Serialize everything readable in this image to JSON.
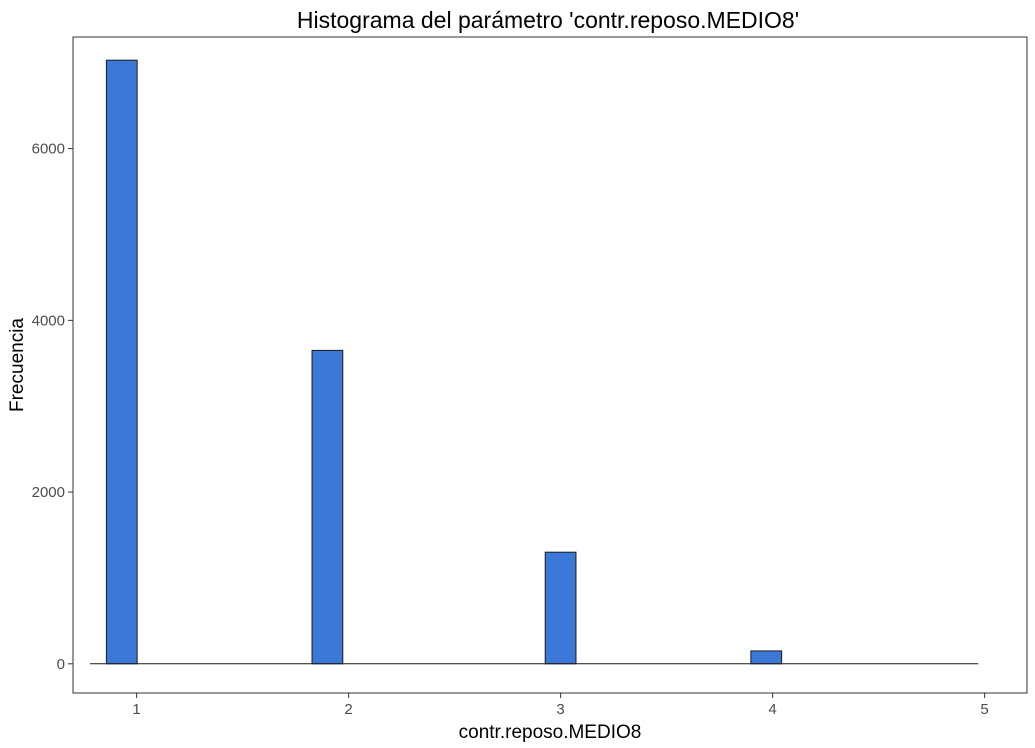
{
  "chart_data": {
    "type": "bar",
    "title": "Histograma del parámetro 'contr.reposo.MEDIO8'",
    "xlabel": "contr.reposo.MEDIO8",
    "ylabel": "Frecuencia",
    "x_ticks": [
      "1",
      "2",
      "3",
      "4",
      "5"
    ],
    "y_ticks": [
      "0",
      "2000",
      "4000",
      "6000"
    ],
    "xlim": [
      0.7,
      5.2
    ],
    "ylim": [
      -340,
      7300
    ],
    "bins": [
      {
        "x": 0.93,
        "value": 7030
      },
      {
        "x": 1.9,
        "value": 3650
      },
      {
        "x": 3.0,
        "value": 1300
      },
      {
        "x": 3.97,
        "value": 150
      }
    ],
    "baseline_range": [
      0.78,
      4.97
    ],
    "bin_width": 0.145,
    "grid": false,
    "legend": "none"
  },
  "colors": {
    "bar_fill": "#3C78D8",
    "bar_stroke": "#1a1a1a",
    "panel_border": "#333333",
    "tick_text": "#4d4d4d"
  }
}
